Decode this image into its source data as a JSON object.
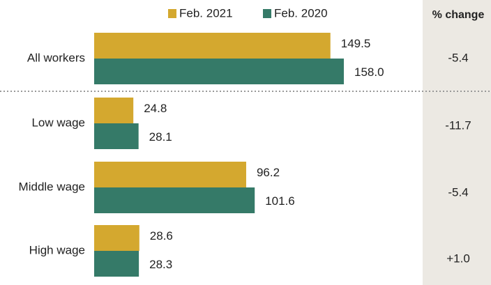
{
  "chart_data": {
    "type": "bar",
    "orientation": "horizontal",
    "categories": [
      "All workers",
      "Low wage",
      "Middle wage",
      "High wage"
    ],
    "series": [
      {
        "name": "Feb. 2021",
        "color": "#d4a82f",
        "values": [
          149.5,
          24.8,
          96.2,
          28.6
        ],
        "value_labels": [
          "149.5",
          "24.8",
          "96.2",
          "28.6"
        ]
      },
      {
        "name": "Feb. 2020",
        "color": "#357a68",
        "values": [
          158.0,
          28.1,
          101.6,
          28.3
        ],
        "value_labels": [
          "158.0",
          "28.1",
          "101.6",
          "28.3"
        ]
      }
    ],
    "change": {
      "title": "% change",
      "values": [
        -5.4,
        -11.7,
        -5.4,
        1.0
      ],
      "value_labels": [
        "-5.4",
        "-11.7",
        "-5.4",
        "+1.0"
      ]
    }
  }
}
